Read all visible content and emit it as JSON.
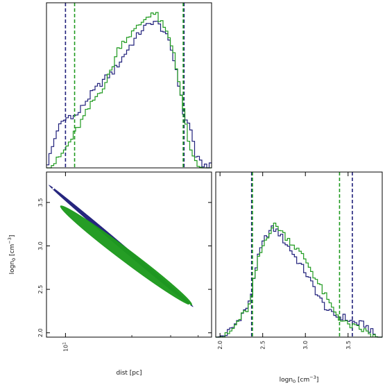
{
  "colors": {
    "series_a": "#1f1f7a",
    "series_b": "#1e9a1e",
    "axes": "#000000",
    "background": "#ffffff"
  },
  "chart_data": [
    {
      "type": "histogram",
      "panel": "top-left",
      "parameter": "dist",
      "xlim": [
        8.2,
        46
      ],
      "x_scale": "log",
      "show_tick_labels": false,
      "series": [
        {
          "color": "#1f1f7a",
          "credible_interval": [
            10.0,
            34.5
          ],
          "curve": [
            [
              8.2,
              0.01
            ],
            [
              8.6,
              0.1
            ],
            [
              9.2,
              0.25
            ],
            [
              9.8,
              0.3
            ],
            [
              10.5,
              0.34
            ],
            [
              11.2,
              0.33
            ],
            [
              12.0,
              0.4
            ],
            [
              13.0,
              0.47
            ],
            [
              14.0,
              0.52
            ],
            [
              15.0,
              0.57
            ],
            [
              16.5,
              0.62
            ],
            [
              18.0,
              0.7
            ],
            [
              19.5,
              0.78
            ],
            [
              21.0,
              0.84
            ],
            [
              22.5,
              0.9
            ],
            [
              24.0,
              0.92
            ],
            [
              25.0,
              0.95
            ],
            [
              26.5,
              0.92
            ],
            [
              28.0,
              0.88
            ],
            [
              30.0,
              0.78
            ],
            [
              32.0,
              0.62
            ],
            [
              33.5,
              0.45
            ],
            [
              34.5,
              0.34
            ],
            [
              36.0,
              0.29
            ],
            [
              37.5,
              0.22
            ],
            [
              39.0,
              0.08
            ],
            [
              41.0,
              0.03
            ],
            [
              44.0,
              0.01
            ]
          ]
        },
        {
          "color": "#1e9a1e",
          "credible_interval": [
            11.0,
            34.2
          ],
          "curve": [
            [
              8.4,
              0.0
            ],
            [
              9.2,
              0.05
            ],
            [
              10.0,
              0.12
            ],
            [
              10.8,
              0.2
            ],
            [
              11.5,
              0.27
            ],
            [
              12.5,
              0.36
            ],
            [
              13.5,
              0.44
            ],
            [
              14.5,
              0.5
            ],
            [
              15.5,
              0.57
            ],
            [
              16.5,
              0.67
            ],
            [
              17.5,
              0.78
            ],
            [
              19.0,
              0.84
            ],
            [
              20.5,
              0.88
            ],
            [
              22.0,
              0.93
            ],
            [
              23.0,
              0.96
            ],
            [
              24.5,
              1.0
            ],
            [
              26.0,
              0.98
            ],
            [
              27.5,
              0.92
            ],
            [
              29.0,
              0.86
            ],
            [
              31.0,
              0.75
            ],
            [
              32.5,
              0.58
            ],
            [
              34.0,
              0.4
            ],
            [
              35.5,
              0.25
            ],
            [
              37.0,
              0.1
            ],
            [
              38.5,
              0.04
            ],
            [
              40.0,
              0.01
            ],
            [
              42.0,
              0.0
            ]
          ]
        }
      ]
    },
    {
      "type": "scatter",
      "panel": "bottom-left",
      "xlabel": "dist [pc]",
      "ylabel": "logn$_0$ [cm$^{-3}$]",
      "ylabel_main": "logn",
      "ylabel_sub": "0",
      "ylabel_unit": "[cm",
      "ylabel_exp": "−3",
      "ylabel_close": "]",
      "xlim": [
        8.2,
        46
      ],
      "x_scale": "log",
      "ylim": [
        1.95,
        3.85
      ],
      "x_ticks": [
        {
          "base": "10",
          "exp": "1",
          "value": 10
        }
      ],
      "y_ticks": [
        "2.0",
        "2.5",
        "3.0",
        "3.5"
      ],
      "series": [
        {
          "color": "#1f1f7a",
          "region": [
            [
              8.5,
              3.69
            ],
            [
              37.5,
              2.31
            ]
          ],
          "half_width": 0.03
        },
        {
          "color": "#1e9a1e",
          "region": [
            [
              9.6,
              3.45
            ],
            [
              37.0,
              2.33
            ]
          ],
          "half_width": 0.09
        }
      ]
    },
    {
      "type": "histogram",
      "panel": "bottom-right",
      "parameter": "logn0",
      "xlabel": "logn$_0$ [cm$^{-3}$]",
      "xlabel_main": "logn",
      "xlabel_sub": "0",
      "xlabel_unit": "[cm",
      "xlabel_exp": "−3",
      "xlabel_close": "]",
      "xlim": [
        1.95,
        3.9
      ],
      "x_ticks": [
        "2.0",
        "2.5",
        "3.0",
        "3.5"
      ],
      "series": [
        {
          "color": "#1f1f7a",
          "credible_interval": [
            2.37,
            3.55
          ],
          "curve": [
            [
              1.98,
              0.0
            ],
            [
              2.05,
              0.01
            ],
            [
              2.15,
              0.06
            ],
            [
              2.25,
              0.14
            ],
            [
              2.3,
              0.18
            ],
            [
              2.33,
              0.2
            ],
            [
              2.36,
              0.24
            ],
            [
              2.38,
              0.33
            ],
            [
              2.42,
              0.45
            ],
            [
              2.48,
              0.57
            ],
            [
              2.55,
              0.66
            ],
            [
              2.62,
              0.7
            ],
            [
              2.68,
              0.68
            ],
            [
              2.75,
              0.62
            ],
            [
              2.82,
              0.57
            ],
            [
              2.9,
              0.5
            ],
            [
              3.0,
              0.42
            ],
            [
              3.1,
              0.32
            ],
            [
              3.2,
              0.22
            ],
            [
              3.3,
              0.15
            ],
            [
              3.4,
              0.13
            ],
            [
              3.45,
              0.13
            ],
            [
              3.5,
              0.11
            ],
            [
              3.55,
              0.1
            ],
            [
              3.6,
              0.09
            ],
            [
              3.7,
              0.08
            ],
            [
              3.8,
              0.02
            ],
            [
              3.85,
              0.0
            ]
          ]
        },
        {
          "color": "#1e9a1e",
          "credible_interval": [
            2.38,
            3.4
          ],
          "curve": [
            [
              2.0,
              0.0
            ],
            [
              2.08,
              0.01
            ],
            [
              2.15,
              0.05
            ],
            [
              2.22,
              0.11
            ],
            [
              2.28,
              0.15
            ],
            [
              2.32,
              0.18
            ],
            [
              2.36,
              0.22
            ],
            [
              2.4,
              0.37
            ],
            [
              2.45,
              0.5
            ],
            [
              2.52,
              0.61
            ],
            [
              2.58,
              0.68
            ],
            [
              2.63,
              0.72
            ],
            [
              2.7,
              0.7
            ],
            [
              2.75,
              0.66
            ],
            [
              2.82,
              0.62
            ],
            [
              2.9,
              0.57
            ],
            [
              3.0,
              0.5
            ],
            [
              3.1,
              0.4
            ],
            [
              3.2,
              0.3
            ],
            [
              3.3,
              0.2
            ],
            [
              3.38,
              0.14
            ],
            [
              3.42,
              0.11
            ],
            [
              3.5,
              0.08
            ],
            [
              3.6,
              0.06
            ],
            [
              3.7,
              0.04
            ],
            [
              3.78,
              0.01
            ],
            [
              3.85,
              0.0
            ]
          ]
        }
      ]
    }
  ]
}
